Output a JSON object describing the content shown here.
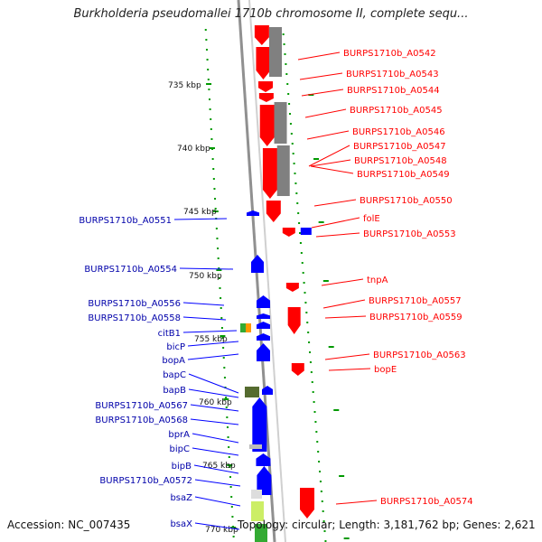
{
  "title": "Burkholderia pseudomallei 1710b chromosome II, complete sequ...",
  "footer": {
    "accession": "Accession: NC_007435",
    "summary": "Topology: circular; Length: 3,181,762 bp; Genes: 2,621"
  },
  "scale_labels": [
    "735 kbp",
    "740 kbp",
    "745 kbp",
    "750 kbp",
    "755 kbp",
    "760 kbp",
    "765 kbp",
    "770 kbp"
  ],
  "colors": {
    "forward": "#ff0000",
    "reverse": "#0000ff",
    "gray_feature": "#808080",
    "green_feature": "#33aa33",
    "backbone": "#909090",
    "ticks": "#009900"
  },
  "right_labels": [
    "BURPS1710b_A0542",
    "BURPS1710b_A0543",
    "BURPS1710b_A0544",
    "BURPS1710b_A0545",
    "BURPS1710b_A0546",
    "BURPS1710b_A0547",
    "BURPS1710b_A0548",
    "BURPS1710b_A0549",
    "BURPS1710b_A0550",
    "folE",
    "BURPS1710b_A0553",
    "tnpA",
    "BURPS1710b_A0557",
    "BURPS1710b_A0559",
    "BURPS1710b_A0563",
    "bopE",
    "BURPS1710b_A0574"
  ],
  "left_labels": [
    "BURPS1710b_A0551",
    "BURPS1710b_A0554",
    "BURPS1710b_A0556",
    "BURPS1710b_A0558",
    "citB1",
    "bicP",
    "bopA",
    "bapC",
    "bapB",
    "BURPS1710b_A0567",
    "BURPS1710b_A0568",
    "bprA",
    "bipC",
    "bipB",
    "BURPS1710b_A0572",
    "bsaZ",
    "bsaX"
  ]
}
